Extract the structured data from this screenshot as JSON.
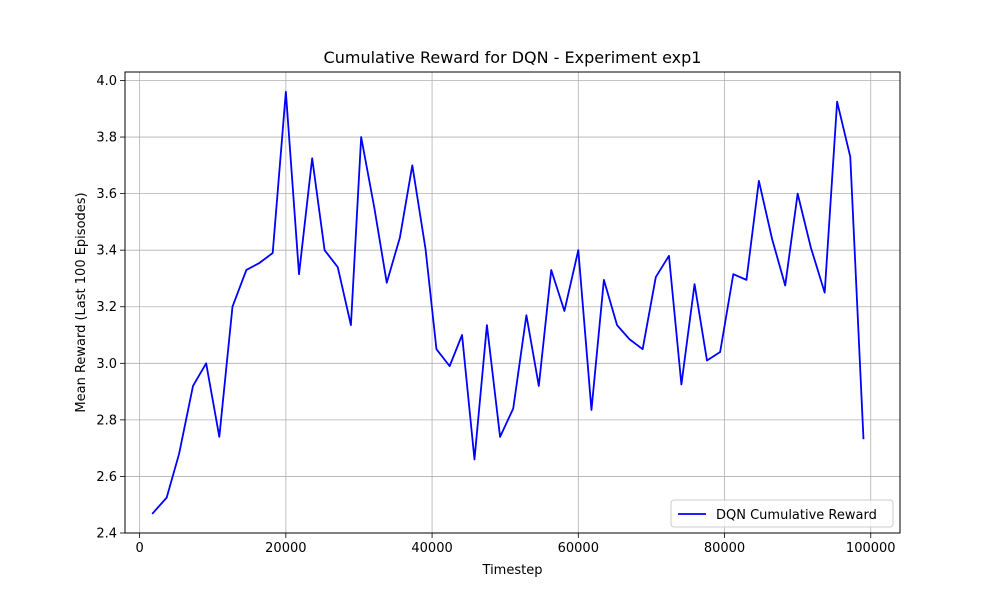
{
  "chart_data": {
    "type": "line",
    "title": "Cumulative Reward for DQN - Experiment exp1",
    "xlabel": "Timestep",
    "ylabel": "Mean Reward (Last 100 Episodes)",
    "xlim": [
      -2000,
      104000
    ],
    "ylim": [
      2.4,
      4.03
    ],
    "xticks": [
      0,
      20000,
      40000,
      60000,
      80000,
      100000
    ],
    "yticks": [
      2.4,
      2.6,
      2.8,
      3.0,
      3.2,
      3.4,
      3.6,
      3.8,
      4.0
    ],
    "xtick_labels": [
      "0",
      "20000",
      "40000",
      "60000",
      "80000",
      "100000"
    ],
    "ytick_labels": [
      "2.4",
      "2.6",
      "2.8",
      "3.0",
      "3.2",
      "3.4",
      "3.6",
      "3.8",
      "4.0"
    ],
    "grid": true,
    "legend_position": "lower-right",
    "series": [
      {
        "name": "DQN Cumulative Reward",
        "color": "#0000ff",
        "x": [
          1800,
          3700,
          5400,
          7300,
          9100,
          10900,
          12700,
          14600,
          16400,
          18200,
          20000,
          21800,
          23600,
          25300,
          27100,
          28900,
          30300,
          32100,
          33800,
          35600,
          37300,
          39100,
          40600,
          42400,
          44100,
          45800,
          47500,
          49300,
          51100,
          52900,
          54600,
          56300,
          58100,
          60000,
          61800,
          63500,
          65300,
          67000,
          68800,
          70600,
          72400,
          74100,
          75900,
          77600,
          79400,
          81200,
          83000,
          84700,
          86500,
          88300,
          90000,
          91800,
          93700,
          95400,
          97200,
          99000
        ],
        "y": [
          2.47,
          2.525,
          2.68,
          2.92,
          3.0,
          2.74,
          3.2,
          3.33,
          3.355,
          3.39,
          3.96,
          3.315,
          3.725,
          3.4,
          3.34,
          3.135,
          3.8,
          3.55,
          3.285,
          3.445,
          3.7,
          3.405,
          3.05,
          2.99,
          3.1,
          2.66,
          3.135,
          2.74,
          2.84,
          3.17,
          2.92,
          3.33,
          3.185,
          3.4,
          2.835,
          3.295,
          3.135,
          3.085,
          3.05,
          3.305,
          3.38,
          2.925,
          3.28,
          3.01,
          3.04,
          3.315,
          3.295,
          3.645,
          3.44,
          3.275,
          3.6,
          3.41,
          3.25,
          3.925,
          3.73,
          2.735
        ]
      }
    ]
  }
}
